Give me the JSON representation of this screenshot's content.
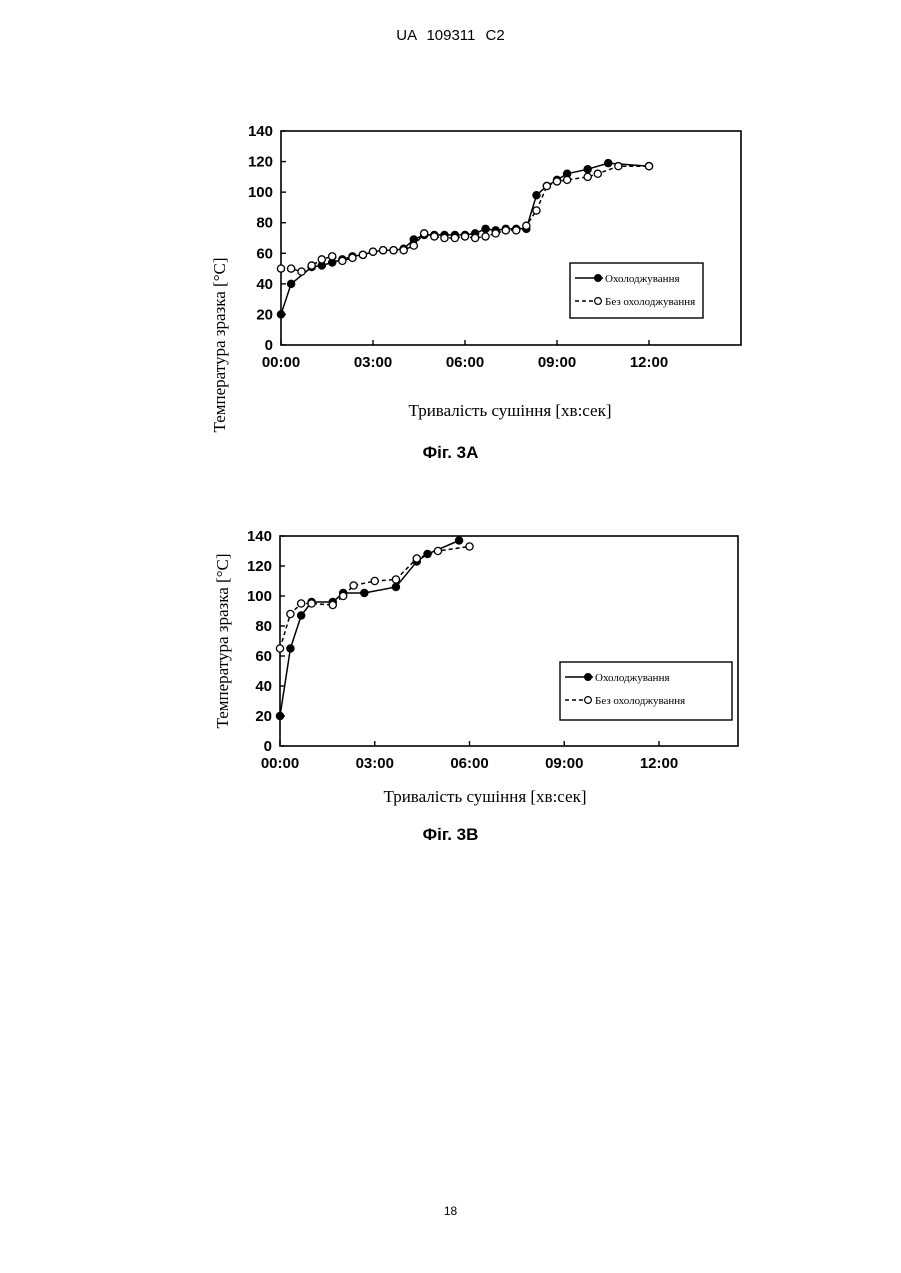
{
  "page": {
    "header": "UA 109311 C2",
    "page_number": "18"
  },
  "figures": [
    {
      "caption": "Фіг. 3А"
    },
    {
      "caption": "Фіг. 3В"
    }
  ],
  "chart_data": [
    {
      "type": "line",
      "xlabel": "Тривалість сушіння [хв:сек]",
      "ylabel": "Температура зразка [°C]",
      "x_unit": "min",
      "xlim": [
        0,
        15
      ],
      "ylim": [
        0,
        140
      ],
      "x_ticks": [
        "00:00",
        "03:00",
        "06:00",
        "09:00",
        "12:00"
      ],
      "y_ticks": [
        "0",
        "20",
        "40",
        "60",
        "80",
        "100",
        "120",
        "140"
      ],
      "grid": false,
      "legend": "right",
      "series": [
        {
          "name": "Охолоджування",
          "marker": "filled",
          "line": "solid",
          "x": [
            0.0,
            0.33,
            1.0,
            1.33,
            1.67,
            2.0,
            2.33,
            2.67,
            3.0,
            3.33,
            3.67,
            4.0,
            4.33,
            4.67,
            5.0,
            5.33,
            5.67,
            6.0,
            6.33,
            6.67,
            7.0,
            7.33,
            7.67,
            8.0,
            8.33,
            8.67,
            9.0,
            9.33,
            10.0,
            10.67,
            12.0
          ],
          "y": [
            20,
            40,
            51,
            52,
            54,
            56,
            58,
            59,
            61,
            62,
            62,
            63,
            69,
            72,
            72,
            72,
            72,
            72,
            73,
            76,
            75,
            76,
            76,
            76,
            98,
            104,
            108,
            112,
            115,
            119,
            117
          ]
        },
        {
          "name": "Без охолоджування",
          "marker": "open",
          "line": "dashed",
          "x": [
            0.0,
            0.33,
            0.67,
            1.0,
            1.33,
            1.67,
            2.0,
            2.33,
            2.67,
            3.0,
            3.33,
            3.67,
            4.0,
            4.33,
            4.67,
            5.0,
            5.33,
            5.67,
            6.0,
            6.33,
            6.67,
            7.0,
            7.33,
            7.67,
            8.0,
            8.33,
            8.67,
            9.0,
            9.33,
            10.0,
            10.33,
            11.0,
            12.0
          ],
          "y": [
            50,
            50,
            48,
            52,
            56,
            58,
            55,
            57,
            59,
            61,
            62,
            62,
            62,
            65,
            73,
            71,
            70,
            70,
            71,
            70,
            71,
            73,
            75,
            75,
            78,
            88,
            104,
            107,
            108,
            110,
            112,
            117,
            117
          ]
        }
      ]
    },
    {
      "type": "line",
      "xlabel": "Тривалість сушіння [хв:сек]",
      "ylabel": "Температура зразка [°C]",
      "x_unit": "min",
      "xlim": [
        0,
        14.5
      ],
      "ylim": [
        0,
        140
      ],
      "x_ticks": [
        "00:00",
        "03:00",
        "06:00",
        "09:00",
        "12:00"
      ],
      "y_ticks": [
        "0",
        "20",
        "40",
        "60",
        "80",
        "100",
        "120",
        "140"
      ],
      "grid": false,
      "legend": "right",
      "series": [
        {
          "name": "Охолоджування",
          "marker": "filled",
          "line": "solid",
          "x": [
            0.0,
            0.33,
            0.67,
            1.0,
            1.67,
            2.0,
            2.67,
            3.67,
            4.33,
            4.67,
            5.67
          ],
          "y": [
            20,
            65,
            87,
            96,
            96,
            102,
            102,
            106,
            123,
            128,
            137
          ]
        },
        {
          "name": "Без охолоджування",
          "marker": "open",
          "line": "dashed",
          "x": [
            0.0,
            0.33,
            0.67,
            1.0,
            1.67,
            2.0,
            2.33,
            3.0,
            3.67,
            4.33,
            5.0,
            6.0
          ],
          "y": [
            65,
            88,
            95,
            95,
            94,
            100,
            107,
            110,
            111,
            125,
            130,
            133
          ]
        }
      ]
    }
  ]
}
